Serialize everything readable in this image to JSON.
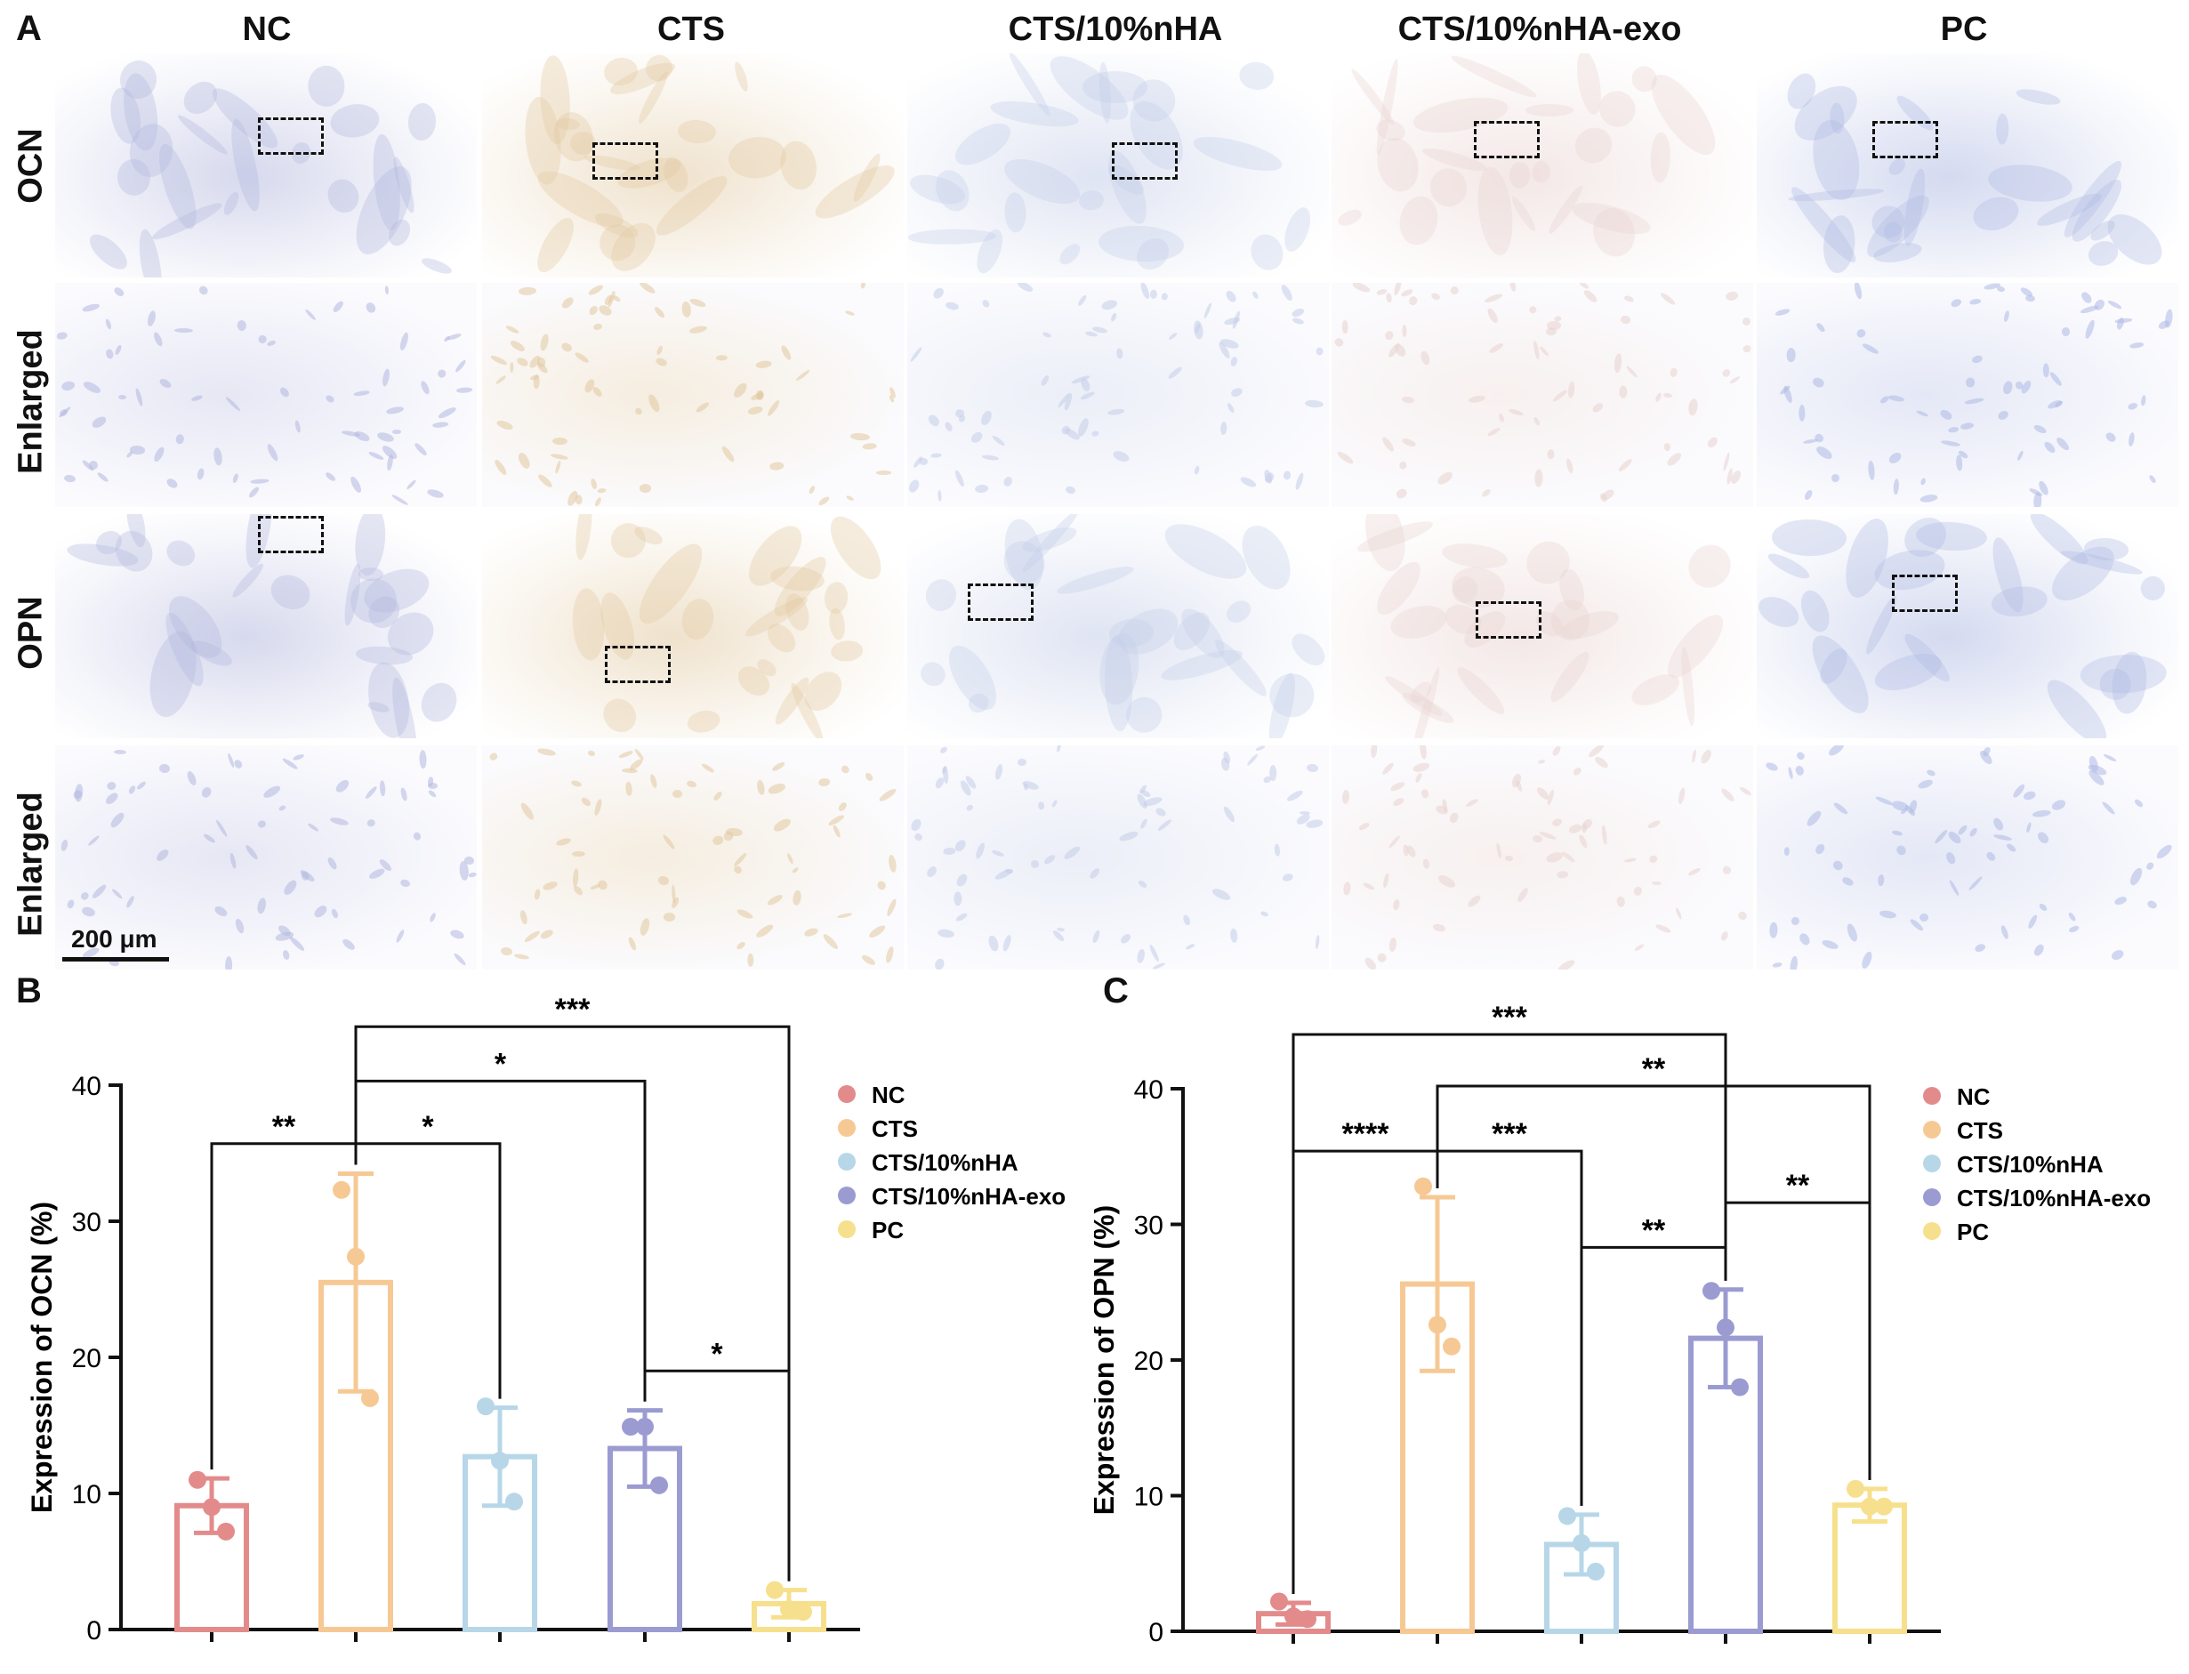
{
  "panel_a": {
    "letter": "A",
    "columns": [
      "NC",
      "CTS",
      "CTS/10%nHA",
      "CTS/10%nHA-exo",
      "PC"
    ],
    "rows": [
      "OCN",
      "Enlarged",
      "OPN",
      "Enlarged"
    ],
    "scale_bar": "200 μm",
    "stain_tints": [
      "#b3b8de",
      "#e2c9a1",
      "#c4cde8",
      "#e8d3d0",
      "#aeb9e3"
    ]
  },
  "chart_data": [
    {
      "panel": "B",
      "type": "bar",
      "ylabel": "Expression of OCN (%)",
      "ylim": [
        0,
        40
      ],
      "yticks": [
        0,
        10,
        20,
        30,
        40
      ],
      "categories": [
        "NC",
        "CTS",
        "CTS/10%nHA",
        "CTS/10%nHA-exo",
        "PC"
      ],
      "colors": [
        "#e38b8b",
        "#f6c994",
        "#b7d7e8",
        "#9b9bd2",
        "#f7e08d"
      ],
      "values": [
        9.1,
        25.5,
        12.7,
        13.3,
        1.9
      ],
      "error": [
        2.0,
        8.0,
        3.6,
        2.8,
        1.0
      ],
      "points": [
        [
          11.0,
          9.0,
          7.2
        ],
        [
          32.3,
          27.4,
          17.0
        ],
        [
          16.4,
          12.4,
          9.4
        ],
        [
          14.9,
          14.9,
          10.6
        ],
        [
          2.9,
          1.5,
          1.3
        ]
      ],
      "legend": [
        "NC",
        "CTS",
        "CTS/10%nHA",
        "CTS/10%nHA-exo",
        "PC"
      ],
      "legend_position": "right",
      "significance": [
        {
          "from": 0,
          "to": 1,
          "label": "**",
          "level": 35.7
        },
        {
          "from": 1,
          "to": 2,
          "label": "*",
          "level": 35.7
        },
        {
          "from": 1,
          "to": 3,
          "label": "*",
          "level": 40.3
        },
        {
          "from": 1,
          "to": 4,
          "label": "***",
          "level": 44.3
        },
        {
          "from": 3,
          "to": 4,
          "label": "*",
          "level": 19.0
        }
      ]
    },
    {
      "panel": "C",
      "type": "bar",
      "ylabel": "Expression of OPN (%)",
      "ylim": [
        0,
        40
      ],
      "yticks": [
        0,
        10,
        20,
        30,
        40
      ],
      "categories": [
        "NC",
        "CTS",
        "CTS/10%nHA",
        "CTS/10%nHA-exo",
        "PC"
      ],
      "colors": [
        "#e38b8b",
        "#f6c994",
        "#b7d7e8",
        "#9b9bd2",
        "#f7e08d"
      ],
      "values": [
        1.3,
        25.6,
        6.4,
        21.6,
        9.3
      ],
      "error": [
        0.8,
        6.4,
        2.2,
        3.6,
        1.2
      ],
      "points": [
        [
          2.2,
          1.1,
          0.9
        ],
        [
          32.8,
          22.6,
          21.0
        ],
        [
          8.5,
          6.5,
          4.4
        ],
        [
          25.1,
          22.4,
          18.0
        ],
        [
          10.5,
          9.2,
          9.2
        ]
      ],
      "legend": [
        "NC",
        "CTS",
        "CTS/10%nHA",
        "CTS/10%nHA-exo",
        "PC"
      ],
      "legend_position": "right",
      "significance": [
        {
          "from": 0,
          "to": 1,
          "label": "****",
          "level": 35.4
        },
        {
          "from": 0,
          "to": 3,
          "label": "***",
          "level": 44.0
        },
        {
          "from": 1,
          "to": 2,
          "label": "***",
          "level": 35.4
        },
        {
          "from": 1,
          "to": 4,
          "label": "**",
          "level": 40.2
        },
        {
          "from": 2,
          "to": 3,
          "label": "**",
          "level": 28.3
        },
        {
          "from": 3,
          "to": 4,
          "label": "**",
          "level": 31.6
        }
      ]
    }
  ]
}
